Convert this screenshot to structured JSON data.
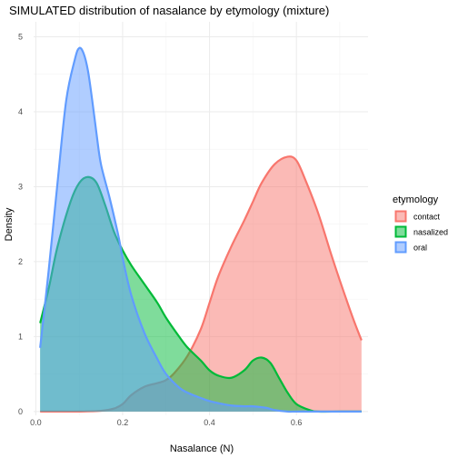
{
  "chart_data": {
    "type": "area",
    "title": "SIMULATED distribution of nasalance by etymology (mixture)",
    "xlabel": "Nasalance (N)",
    "ylabel": "Density",
    "xlim": [
      -0.005,
      0.765
    ],
    "ylim": [
      -0.05,
      5.2
    ],
    "x_ticks": [
      0.0,
      0.2,
      0.4,
      0.6
    ],
    "x_tick_labels": [
      "0.0",
      "0.2",
      "0.4",
      "0.6"
    ],
    "y_ticks": [
      0,
      1,
      2,
      3,
      4,
      5
    ],
    "y_tick_labels": [
      "0",
      "1",
      "2",
      "3",
      "4",
      "5"
    ],
    "grid": true,
    "legend": {
      "title": "etymology",
      "placement": "right"
    },
    "series": [
      {
        "name": "contact",
        "color": "#F8766D",
        "x": [
          0.01,
          0.05,
          0.1,
          0.15,
          0.18,
          0.2,
          0.22,
          0.25,
          0.28,
          0.3,
          0.32,
          0.35,
          0.38,
          0.4,
          0.42,
          0.45,
          0.48,
          0.5,
          0.52,
          0.55,
          0.58,
          0.6,
          0.62,
          0.65,
          0.68,
          0.7,
          0.73,
          0.75
        ],
        "y": [
          0.0,
          0.0,
          0.0,
          0.01,
          0.04,
          0.1,
          0.22,
          0.33,
          0.38,
          0.42,
          0.52,
          0.75,
          1.1,
          1.45,
          1.8,
          2.2,
          2.55,
          2.8,
          3.05,
          3.3,
          3.4,
          3.35,
          3.1,
          2.65,
          2.1,
          1.75,
          1.25,
          0.95
        ]
      },
      {
        "name": "nasalized",
        "color": "#00BA38",
        "x": [
          0.01,
          0.03,
          0.05,
          0.08,
          0.1,
          0.12,
          0.14,
          0.16,
          0.18,
          0.2,
          0.22,
          0.25,
          0.28,
          0.3,
          0.33,
          0.35,
          0.38,
          0.4,
          0.42,
          0.45,
          0.48,
          0.5,
          0.52,
          0.54,
          0.56,
          0.58,
          0.6,
          0.63,
          0.65,
          0.7,
          0.75
        ],
        "y": [
          1.18,
          1.65,
          2.2,
          2.8,
          3.05,
          3.13,
          3.05,
          2.75,
          2.4,
          2.15,
          1.95,
          1.7,
          1.45,
          1.25,
          1.0,
          0.85,
          0.68,
          0.55,
          0.48,
          0.45,
          0.55,
          0.68,
          0.72,
          0.65,
          0.45,
          0.25,
          0.1,
          0.02,
          0.0,
          0.0,
          0.0
        ]
      },
      {
        "name": "oral",
        "color": "#619CFF",
        "x": [
          0.01,
          0.03,
          0.05,
          0.07,
          0.09,
          0.1,
          0.11,
          0.12,
          0.13,
          0.14,
          0.15,
          0.17,
          0.19,
          0.2,
          0.22,
          0.25,
          0.28,
          0.3,
          0.33,
          0.35,
          0.38,
          0.4,
          0.43,
          0.45,
          0.48,
          0.5,
          0.53,
          0.55,
          0.58,
          0.6,
          0.65,
          0.7,
          0.75
        ],
        "y": [
          0.85,
          1.9,
          3.05,
          4.15,
          4.7,
          4.85,
          4.78,
          4.55,
          4.15,
          3.7,
          3.3,
          2.85,
          2.35,
          2.05,
          1.55,
          1.05,
          0.7,
          0.5,
          0.32,
          0.25,
          0.18,
          0.14,
          0.1,
          0.08,
          0.07,
          0.07,
          0.05,
          0.02,
          0.0,
          0.0,
          0.0,
          0.0,
          0.0
        ]
      }
    ]
  }
}
